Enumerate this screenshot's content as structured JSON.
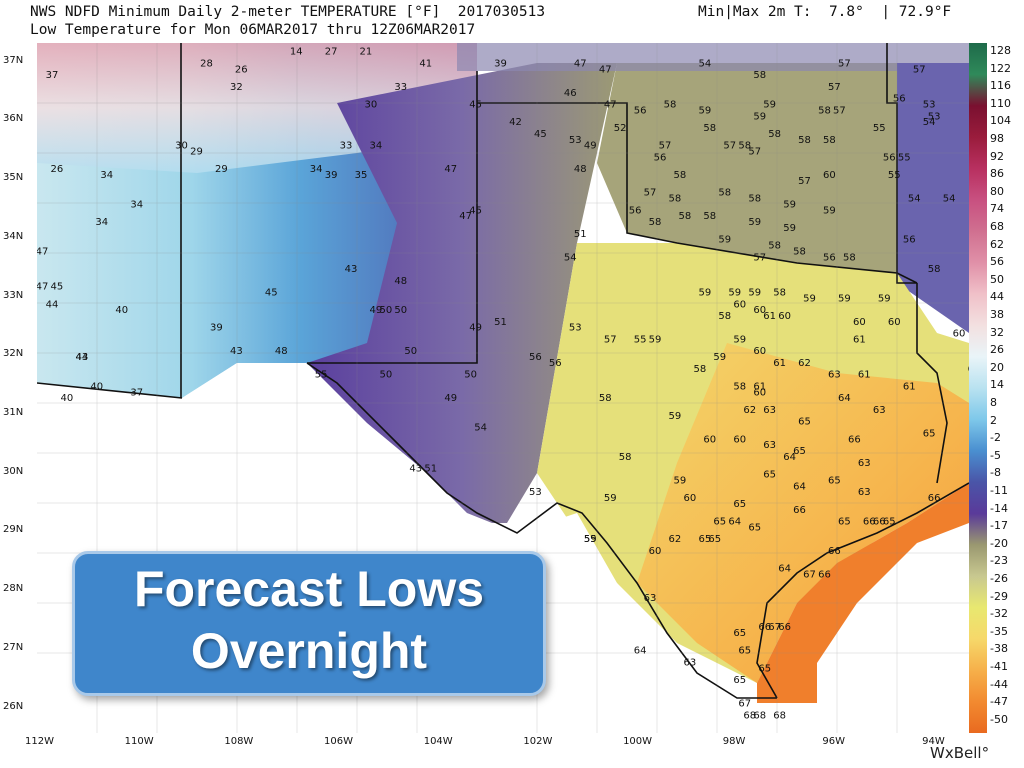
{
  "header": {
    "line1": "NWS NDFD Minimum Daily 2-meter TEMPERATURE [°F]  2017030513",
    "line2": "Low Temperature for Mon 06MAR2017 thru 12Z06MAR2017",
    "minmax": "Min|Max 2m T:  7.8°  | 72.9°F"
  },
  "callout": {
    "text": "Forecast Lows\nOvernight"
  },
  "brand": "WxBell°",
  "lat_labels": [
    "37N",
    "36N",
    "35N",
    "34N",
    "33N",
    "32N",
    "31N",
    "30N",
    "29N",
    "28N",
    "27N",
    "26N"
  ],
  "lon_labels": [
    "112W",
    "110W",
    "108W",
    "106W",
    "104W",
    "102W",
    "100W",
    "98W",
    "96W",
    "94W"
  ],
  "scale_labels": [
    "128",
    "122",
    "116",
    "110",
    "104",
    "98",
    "92",
    "86",
    "80",
    "74",
    "68",
    "62",
    "56",
    "50",
    "44",
    "38",
    "32",
    "26",
    "20",
    "14",
    "8",
    "2",
    "-2",
    "-5",
    "-8",
    "-11",
    "-14",
    "-17",
    "-20",
    "-23",
    "-26",
    "-29",
    "-32",
    "-35",
    "-38",
    "-41",
    "-44",
    "-47",
    "-50"
  ],
  "scale_colors": [
    "#1e6a4a",
    "#2f8a5a",
    "#7a1030",
    "#9a1c3c",
    "#b83060",
    "#c85080",
    "#d07090",
    "#e090a8",
    "#f0c0c8",
    "#f3e0e0",
    "#e9f4f8",
    "#b9e2f0",
    "#7ec8ea",
    "#4a8fd0",
    "#4a55a8",
    "#5a3a9a",
    "#9a9870",
    "#c8c890",
    "#e8e870",
    "#f6d86a",
    "#f6b04a",
    "#f28a30",
    "#e96a20"
  ],
  "map_values": [
    {
      "v": "28",
      "lon": -108.6,
      "lat": 36.9
    },
    {
      "v": "26",
      "lon": -107.9,
      "lat": 36.8
    },
    {
      "v": "14",
      "lon": -106.8,
      "lat": 37.1
    },
    {
      "v": "27",
      "lon": -106.1,
      "lat": 37.1
    },
    {
      "v": "21",
      "lon": -105.4,
      "lat": 37.1
    },
    {
      "v": "41",
      "lon": -104.2,
      "lat": 36.9
    },
    {
      "v": "39",
      "lon": -102.7,
      "lat": 36.9
    },
    {
      "v": "47",
      "lon": -101.1,
      "lat": 36.9
    },
    {
      "v": "47",
      "lon": -100.6,
      "lat": 36.8
    },
    {
      "v": "54",
      "lon": -98.6,
      "lat": 36.9
    },
    {
      "v": "57",
      "lon": -95.8,
      "lat": 36.9
    },
    {
      "v": "57",
      "lon": -94.3,
      "lat": 36.8
    },
    {
      "v": "52",
      "lon": -93.0,
      "lat": 36.8
    },
    {
      "v": "58",
      "lon": -97.5,
      "lat": 36.7
    },
    {
      "v": "57",
      "lon": -96.0,
      "lat": 36.5
    },
    {
      "v": "37",
      "lon": -111.7,
      "lat": 36.7
    },
    {
      "v": "32",
      "lon": -108.0,
      "lat": 36.5
    },
    {
      "v": "33",
      "lon": -104.7,
      "lat": 36.5
    },
    {
      "v": "30",
      "lon": -105.3,
      "lat": 36.2
    },
    {
      "v": "45",
      "lon": -103.2,
      "lat": 36.2
    },
    {
      "v": "46",
      "lon": -101.3,
      "lat": 36.4
    },
    {
      "v": "47",
      "lon": -100.5,
      "lat": 36.2
    },
    {
      "v": "56",
      "lon": -99.9,
      "lat": 36.1
    },
    {
      "v": "58",
      "lon": -99.3,
      "lat": 36.2
    },
    {
      "v": "59",
      "lon": -98.6,
      "lat": 36.1
    },
    {
      "v": "59",
      "lon": -97.3,
      "lat": 36.2
    },
    {
      "v": "58",
      "lon": -96.2,
      "lat": 36.1
    },
    {
      "v": "57",
      "lon": -95.9,
      "lat": 36.1
    },
    {
      "v": "56",
      "lon": -94.7,
      "lat": 36.3
    },
    {
      "v": "53",
      "lon": -94.1,
      "lat": 36.2
    },
    {
      "v": "53",
      "lon": -94.0,
      "lat": 36.0
    },
    {
      "v": "54",
      "lon": -94.1,
      "lat": 35.9
    },
    {
      "v": "51",
      "lon": -93.1,
      "lat": 36.1
    },
    {
      "v": "42",
      "lon": -102.4,
      "lat": 35.9
    },
    {
      "v": "45",
      "lon": -101.9,
      "lat": 35.7
    },
    {
      "v": "53",
      "lon": -101.2,
      "lat": 35.6
    },
    {
      "v": "49",
      "lon": -100.9,
      "lat": 35.5
    },
    {
      "v": "52",
      "lon": -100.3,
      "lat": 35.8
    },
    {
      "v": "57",
      "lon": -99.4,
      "lat": 35.5
    },
    {
      "v": "58",
      "lon": -98.5,
      "lat": 35.8
    },
    {
      "v": "59",
      "lon": -97.5,
      "lat": 36.0
    },
    {
      "v": "58",
      "lon": -97.2,
      "lat": 35.7
    },
    {
      "v": "57",
      "lon": -98.1,
      "lat": 35.5
    },
    {
      "v": "58",
      "lon": -97.8,
      "lat": 35.5
    },
    {
      "v": "58",
      "lon": -96.6,
      "lat": 35.6
    },
    {
      "v": "58",
      "lon": -96.1,
      "lat": 35.6
    },
    {
      "v": "55",
      "lon": -95.1,
      "lat": 35.8
    },
    {
      "v": "56",
      "lon": -94.9,
      "lat": 35.3
    },
    {
      "v": "55",
      "lon": -94.6,
      "lat": 35.3
    },
    {
      "v": "53",
      "lon": -93.0,
      "lat": 35.2
    },
    {
      "v": "30",
      "lon": -109.1,
      "lat": 35.5
    },
    {
      "v": "29",
      "lon": -108.8,
      "lat": 35.4
    },
    {
      "v": "33",
      "lon": -105.8,
      "lat": 35.5
    },
    {
      "v": "34",
      "lon": -105.2,
      "lat": 35.5
    },
    {
      "v": "26",
      "lon": -111.6,
      "lat": 35.1
    },
    {
      "v": "34",
      "lon": -110.6,
      "lat": 35.0
    },
    {
      "v": "29",
      "lon": -108.3,
      "lat": 35.1
    },
    {
      "v": "34",
      "lon": -106.4,
      "lat": 35.1
    },
    {
      "v": "39",
      "lon": -106.1,
      "lat": 35.0
    },
    {
      "v": "35",
      "lon": -105.5,
      "lat": 35.0
    },
    {
      "v": "47",
      "lon": -103.7,
      "lat": 35.1
    },
    {
      "v": "48",
      "lon": -101.1,
      "lat": 35.1
    },
    {
      "v": "56",
      "lon": -99.5,
      "lat": 35.3
    },
    {
      "v": "58",
      "lon": -99.1,
      "lat": 35.0
    },
    {
      "v": "57",
      "lon": -97.6,
      "lat": 35.4
    },
    {
      "v": "60",
      "lon": -96.1,
      "lat": 35.0
    },
    {
      "v": "57",
      "lon": -96.6,
      "lat": 34.9
    },
    {
      "v": "55",
      "lon": -94.8,
      "lat": 35.0
    },
    {
      "v": "34",
      "lon": -110.0,
      "lat": 34.5
    },
    {
      "v": "34",
      "lon": -110.7,
      "lat": 34.2
    },
    {
      "v": "57",
      "lon": -99.7,
      "lat": 34.7
    },
    {
      "v": "58",
      "lon": -99.2,
      "lat": 34.6
    },
    {
      "v": "58",
      "lon": -98.2,
      "lat": 34.7
    },
    {
      "v": "58",
      "lon": -97.6,
      "lat": 34.6
    },
    {
      "v": "59",
      "lon": -96.9,
      "lat": 34.5
    },
    {
      "v": "59",
      "lon": -96.1,
      "lat": 34.4
    },
    {
      "v": "54",
      "lon": -94.4,
      "lat": 34.6
    },
    {
      "v": "54",
      "lon": -93.7,
      "lat": 34.6
    },
    {
      "v": "54",
      "lon": -92.9,
      "lat": 34.6
    },
    {
      "v": "45",
      "lon": -103.2,
      "lat": 34.4
    },
    {
      "v": "47",
      "lon": -103.4,
      "lat": 34.3
    },
    {
      "v": "56",
      "lon": -100.0,
      "lat": 34.4
    },
    {
      "v": "58",
      "lon": -99.6,
      "lat": 34.2
    },
    {
      "v": "58",
      "lon": -99.0,
      "lat": 34.3
    },
    {
      "v": "58",
      "lon": -98.5,
      "lat": 34.3
    },
    {
      "v": "59",
      "lon": -97.6,
      "lat": 34.2
    },
    {
      "v": "59",
      "lon": -96.9,
      "lat": 34.1
    },
    {
      "v": "56",
      "lon": -94.5,
      "lat": 33.9
    },
    {
      "v": "51",
      "lon": -101.1,
      "lat": 34.0
    },
    {
      "v": "59",
      "lon": -98.2,
      "lat": 33.9
    },
    {
      "v": "58",
      "lon": -97.2,
      "lat": 33.8
    },
    {
      "v": "56",
      "lon": -96.1,
      "lat": 33.6
    },
    {
      "v": "58",
      "lon": -95.7,
      "lat": 33.6
    },
    {
      "v": "57",
      "lon": -97.5,
      "lat": 33.6
    },
    {
      "v": "58",
      "lon": -96.7,
      "lat": 33.7
    },
    {
      "v": "58",
      "lon": -94.0,
      "lat": 33.4
    },
    {
      "v": "47",
      "lon": -111.9,
      "lat": 33.7
    },
    {
      "v": "54",
      "lon": -101.3,
      "lat": 33.6
    },
    {
      "v": "43",
      "lon": -105.7,
      "lat": 33.4
    },
    {
      "v": "48",
      "lon": -104.7,
      "lat": 33.2
    },
    {
      "v": "47",
      "lon": -111.9,
      "lat": 33.1
    },
    {
      "v": "45",
      "lon": -111.6,
      "lat": 33.1
    },
    {
      "v": "44",
      "lon": -111.7,
      "lat": 32.8
    },
    {
      "v": "40",
      "lon": -110.3,
      "lat": 32.7
    },
    {
      "v": "45",
      "lon": -107.3,
      "lat": 33.0
    },
    {
      "v": "59",
      "lon": -98.6,
      "lat": 33.0
    },
    {
      "v": "59",
      "lon": -98.0,
      "lat": 33.0
    },
    {
      "v": "59",
      "lon": -97.6,
      "lat": 33.0
    },
    {
      "v": "58",
      "lon": -97.1,
      "lat": 33.0
    },
    {
      "v": "59",
      "lon": -96.5,
      "lat": 32.9
    },
    {
      "v": "59",
      "lon": -95.8,
      "lat": 32.9
    },
    {
      "v": "59",
      "lon": -95.0,
      "lat": 32.9
    },
    {
      "v": "50",
      "lon": -104.7,
      "lat": 32.7
    },
    {
      "v": "49",
      "lon": -105.2,
      "lat": 32.7
    },
    {
      "v": "50",
      "lon": -105.0,
      "lat": 32.7
    },
    {
      "v": "39",
      "lon": -108.4,
      "lat": 32.4
    },
    {
      "v": "49",
      "lon": -103.2,
      "lat": 32.4
    },
    {
      "v": "51",
      "lon": -102.7,
      "lat": 32.5
    },
    {
      "v": "53",
      "lon": -101.2,
      "lat": 32.4
    },
    {
      "v": "58",
      "lon": -98.2,
      "lat": 32.6
    },
    {
      "v": "60",
      "lon": -97.9,
      "lat": 32.8
    },
    {
      "v": "60",
      "lon": -97.5,
      "lat": 32.7
    },
    {
      "v": "61",
      "lon": -97.3,
      "lat": 32.6
    },
    {
      "v": "60",
      "lon": -97.0,
      "lat": 32.6
    },
    {
      "v": "60",
      "lon": -95.5,
      "lat": 32.5
    },
    {
      "v": "60",
      "lon": -94.8,
      "lat": 32.5
    },
    {
      "v": "60",
      "lon": -93.5,
      "lat": 32.3
    },
    {
      "v": "43",
      "lon": -108.0,
      "lat": 32.0
    },
    {
      "v": "48",
      "lon": -107.1,
      "lat": 32.0
    },
    {
      "v": "50",
      "lon": -104.5,
      "lat": 32.0
    },
    {
      "v": "57",
      "lon": -100.5,
      "lat": 32.2
    },
    {
      "v": "55",
      "lon": -99.9,
      "lat": 32.2
    },
    {
      "v": "59",
      "lon": -99.6,
      "lat": 32.2
    },
    {
      "v": "59",
      "lon": -97.9,
      "lat": 32.2
    },
    {
      "v": "60",
      "lon": -97.5,
      "lat": 32.0
    },
    {
      "v": "61",
      "lon": -95.5,
      "lat": 32.2
    },
    {
      "v": "44",
      "lon": -111.1,
      "lat": 31.9
    },
    {
      "v": "43",
      "lon": -111.1,
      "lat": 31.9
    },
    {
      "v": "56",
      "lon": -102.0,
      "lat": 31.9
    },
    {
      "v": "56",
      "lon": -101.6,
      "lat": 31.8
    },
    {
      "v": "58",
      "lon": -98.7,
      "lat": 31.7
    },
    {
      "v": "59",
      "lon": -98.3,
      "lat": 31.9
    },
    {
      "v": "61",
      "lon": -97.1,
      "lat": 31.8
    },
    {
      "v": "62",
      "lon": -96.6,
      "lat": 31.8
    },
    {
      "v": "55",
      "lon": -106.3,
      "lat": 31.6
    },
    {
      "v": "40",
      "lon": -110.8,
      "lat": 31.4
    },
    {
      "v": "37",
      "lon": -110.0,
      "lat": 31.3
    },
    {
      "v": "40",
      "lon": -111.4,
      "lat": 31.2
    },
    {
      "v": "50",
      "lon": -105.0,
      "lat": 31.6
    },
    {
      "v": "50",
      "lon": -103.3,
      "lat": 31.6
    },
    {
      "v": "58",
      "lon": -97.9,
      "lat": 31.4
    },
    {
      "v": "63",
      "lon": -96.0,
      "lat": 31.6
    },
    {
      "v": "61",
      "lon": -95.4,
      "lat": 31.6
    },
    {
      "v": "60",
      "lon": -93.2,
      "lat": 31.7
    },
    {
      "v": "61",
      "lon": -94.5,
      "lat": 31.4
    },
    {
      "v": "49",
      "lon": -103.7,
      "lat": 31.2
    },
    {
      "v": "58",
      "lon": -100.6,
      "lat": 31.2
    },
    {
      "v": "61",
      "lon": -97.5,
      "lat": 31.4
    },
    {
      "v": "60",
      "lon": -97.5,
      "lat": 31.3
    },
    {
      "v": "63",
      "lon": -97.3,
      "lat": 31.0
    },
    {
      "v": "64",
      "lon": -95.8,
      "lat": 31.2
    },
    {
      "v": "63",
      "lon": -95.1,
      "lat": 31.0
    },
    {
      "v": "59",
      "lon": -99.2,
      "lat": 30.9
    },
    {
      "v": "62",
      "lon": -97.7,
      "lat": 31.0
    },
    {
      "v": "54",
      "lon": -103.1,
      "lat": 30.7
    },
    {
      "v": "65",
      "lon": -96.6,
      "lat": 30.8
    },
    {
      "v": "65",
      "lon": -94.1,
      "lat": 30.6
    },
    {
      "v": "64",
      "lon": -92.9,
      "lat": 30.9
    },
    {
      "v": "60",
      "lon": -98.5,
      "lat": 30.5
    },
    {
      "v": "60",
      "lon": -97.9,
      "lat": 30.5
    },
    {
      "v": "63",
      "lon": -97.3,
      "lat": 30.4
    },
    {
      "v": "66",
      "lon": -95.6,
      "lat": 30.5
    },
    {
      "v": "64",
      "lon": -96.9,
      "lat": 30.2
    },
    {
      "v": "65",
      "lon": -96.7,
      "lat": 30.3
    },
    {
      "v": "58",
      "lon": -100.2,
      "lat": 30.2
    },
    {
      "v": "63",
      "lon": -95.4,
      "lat": 30.1
    },
    {
      "v": "43",
      "lon": -104.4,
      "lat": 30.0
    },
    {
      "v": "51",
      "lon": -104.1,
      "lat": 30.0
    },
    {
      "v": "59",
      "lon": -99.1,
      "lat": 29.8
    },
    {
      "v": "65",
      "lon": -97.3,
      "lat": 29.9
    },
    {
      "v": "64",
      "lon": -96.7,
      "lat": 29.7
    },
    {
      "v": "65",
      "lon": -96.0,
      "lat": 29.8
    },
    {
      "v": "63",
      "lon": -95.4,
      "lat": 29.6
    },
    {
      "v": "65",
      "lon": -92.9,
      "lat": 29.9
    },
    {
      "v": "53",
      "lon": -102.0,
      "lat": 29.6
    },
    {
      "v": "59",
      "lon": -100.5,
      "lat": 29.5
    },
    {
      "v": "60",
      "lon": -98.9,
      "lat": 29.5
    },
    {
      "v": "65",
      "lon": -97.9,
      "lat": 29.4
    },
    {
      "v": "66",
      "lon": -96.7,
      "lat": 29.3
    },
    {
      "v": "66",
      "lon": -94.0,
      "lat": 29.5
    },
    {
      "v": "65",
      "lon": -98.3,
      "lat": 29.1
    },
    {
      "v": "64",
      "lon": -98.0,
      "lat": 29.1
    },
    {
      "v": "65",
      "lon": -97.6,
      "lat": 29.0
    },
    {
      "v": "65",
      "lon": -95.8,
      "lat": 29.1
    },
    {
      "v": "66",
      "lon": -95.3,
      "lat": 29.1
    },
    {
      "v": "66",
      "lon": -95.1,
      "lat": 29.1
    },
    {
      "v": "65",
      "lon": -94.9,
      "lat": 29.1
    },
    {
      "v": "55",
      "lon": -100.9,
      "lat": 28.8
    },
    {
      "v": "59",
      "lon": -100.9,
      "lat": 28.8
    },
    {
      "v": "62",
      "lon": -99.2,
      "lat": 28.8
    },
    {
      "v": "65",
      "lon": -98.6,
      "lat": 28.8
    },
    {
      "v": "65",
      "lon": -98.4,
      "lat": 28.8
    },
    {
      "v": "60",
      "lon": -99.6,
      "lat": 28.6
    },
    {
      "v": "66",
      "lon": -96.0,
      "lat": 28.6
    },
    {
      "v": "64",
      "lon": -97.0,
      "lat": 28.3
    },
    {
      "v": "67",
      "lon": -96.5,
      "lat": 28.2
    },
    {
      "v": "66",
      "lon": -96.2,
      "lat": 28.2
    },
    {
      "v": "63",
      "lon": -99.7,
      "lat": 27.8
    },
    {
      "v": "65",
      "lon": -97.9,
      "lat": 27.2
    },
    {
      "v": "66",
      "lon": -97.4,
      "lat": 27.3
    },
    {
      "v": "67",
      "lon": -97.2,
      "lat": 27.3
    },
    {
      "v": "66",
      "lon": -97.0,
      "lat": 27.3
    },
    {
      "v": "64",
      "lon": -99.9,
      "lat": 26.9
    },
    {
      "v": "63",
      "lon": -98.9,
      "lat": 26.7
    },
    {
      "v": "65",
      "lon": -97.8,
      "lat": 26.9
    },
    {
      "v": "65",
      "lon": -97.4,
      "lat": 26.6
    },
    {
      "v": "65",
      "lon": -97.9,
      "lat": 26.4
    },
    {
      "v": "67",
      "lon": -97.8,
      "lat": 26.0
    },
    {
      "v": "68",
      "lon": -97.7,
      "lat": 25.8
    },
    {
      "v": "68",
      "lon": -97.5,
      "lat": 25.8
    },
    {
      "v": "68",
      "lon": -97.1,
      "lat": 25.8
    }
  ]
}
